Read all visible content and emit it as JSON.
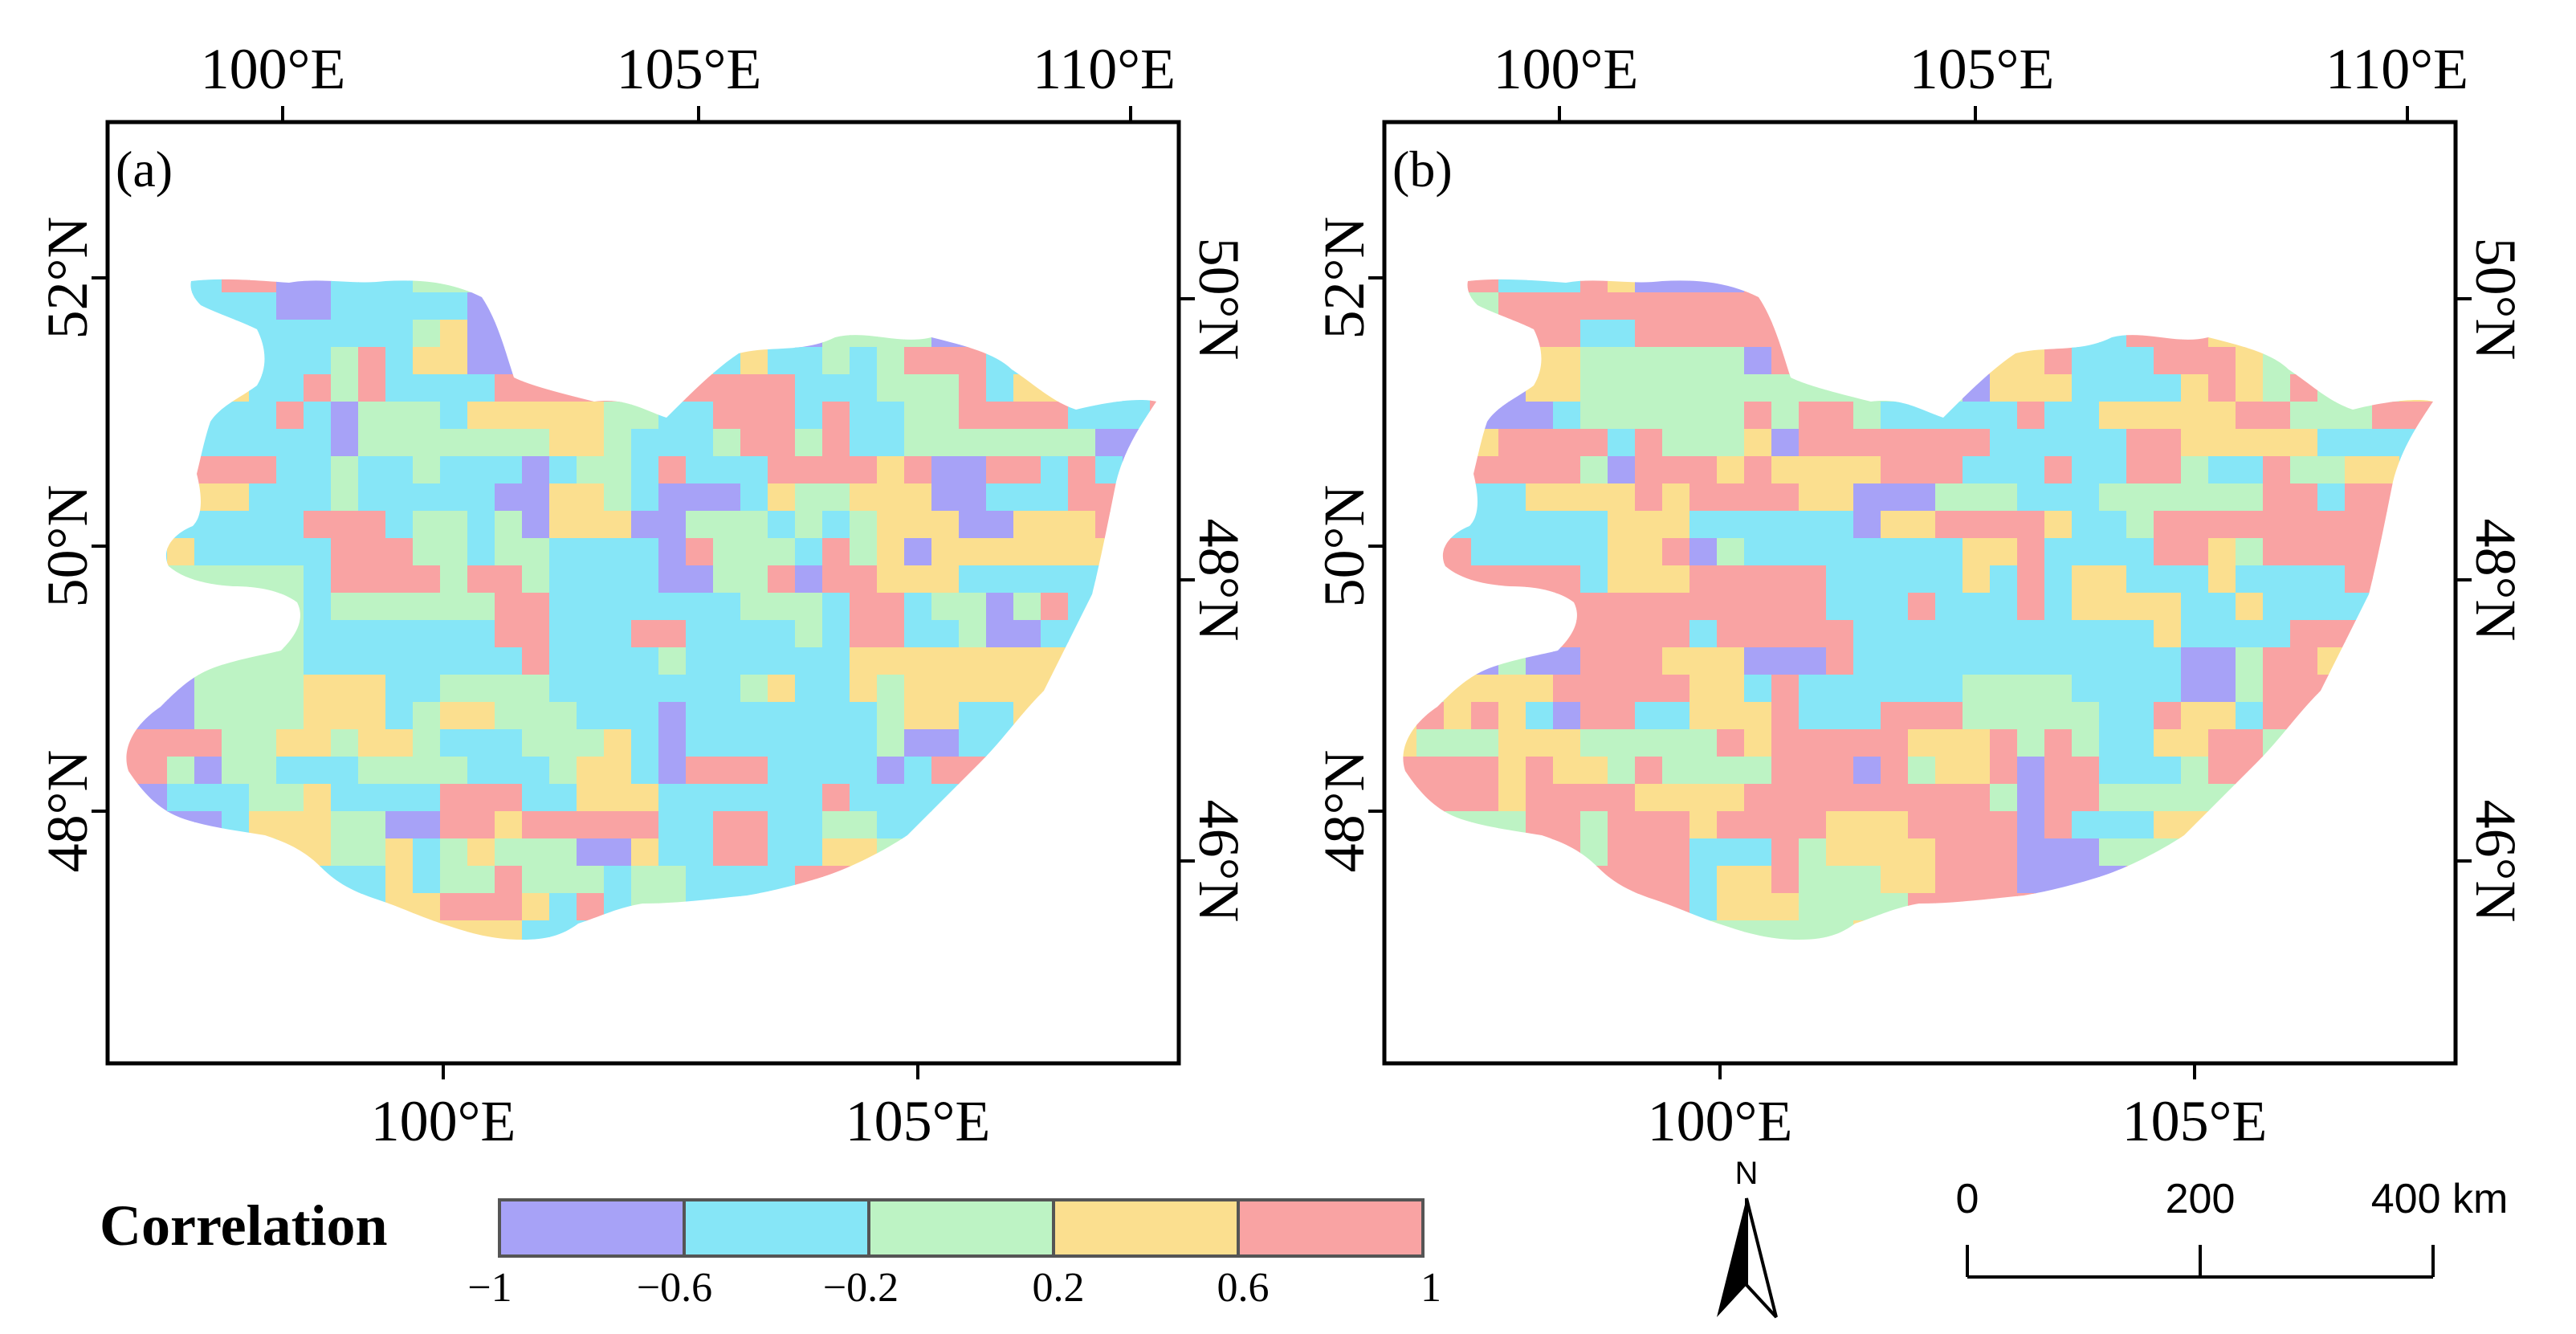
{
  "panels": [
    {
      "label": "(a)",
      "top_ticks": [
        "100°E",
        "105°E",
        "110°E"
      ],
      "bottom_ticks": [
        "100°E",
        "105°E"
      ],
      "left_ticks": [
        "52°N",
        "50°N",
        "48°N"
      ],
      "right_ticks": [
        "50°N",
        "48°N",
        "46°N"
      ],
      "weights": [
        0.16,
        0.26,
        0.26,
        0.16,
        0.16
      ],
      "seed": 11
    },
    {
      "label": "(b)",
      "top_ticks": [
        "100°E",
        "105°E",
        "110°E"
      ],
      "bottom_ticks": [
        "100°E",
        "105°E"
      ],
      "left_ticks": [
        "52°N",
        "50°N",
        "48°N"
      ],
      "right_ticks": [
        "50°N",
        "48°N",
        "46°N"
      ],
      "weights": [
        0.08,
        0.14,
        0.18,
        0.18,
        0.42
      ],
      "seed": 29
    }
  ],
  "legend": {
    "title": "Correlation",
    "classes": [
      {
        "range": [
          -1,
          -0.6
        ],
        "color": "#a7a2f7"
      },
      {
        "range": [
          -0.6,
          -0.2
        ],
        "color": "#86e6f7"
      },
      {
        "range": [
          -0.2,
          0.2
        ],
        "color": "#bdf3c4"
      },
      {
        "range": [
          0.2,
          0.6
        ],
        "color": "#fbdf8f"
      },
      {
        "range": [
          0.6,
          1
        ],
        "color": "#f9a3a3"
      }
    ],
    "tick_labels": [
      "−1",
      "−0.6",
      "−0.2",
      "0.2",
      "0.6",
      "1"
    ]
  },
  "north_arrow": {
    "label": "N"
  },
  "scale_bar": {
    "labels": [
      "0",
      "200",
      "400 km"
    ]
  }
}
